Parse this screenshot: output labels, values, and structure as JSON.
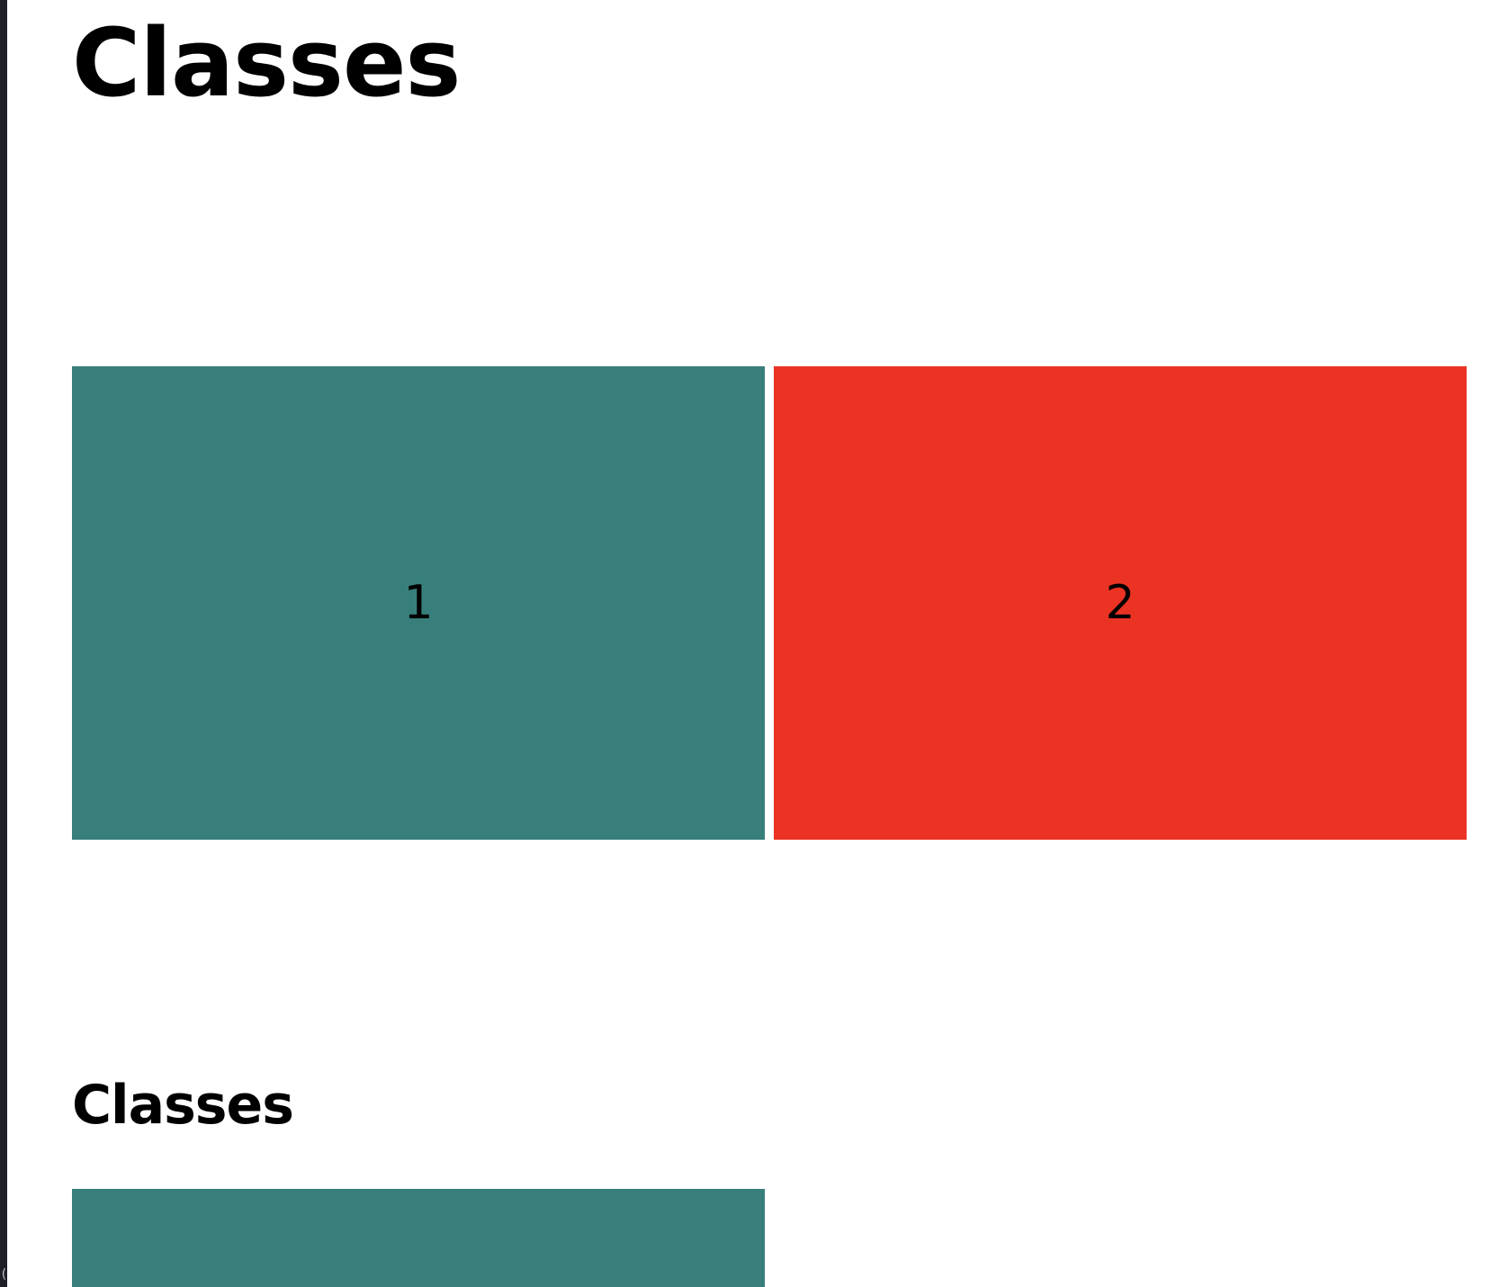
{
  "headings": {
    "first": "Classes",
    "second": "Classes"
  },
  "grid_one": {
    "items": [
      {
        "label": "1",
        "color": "#387f7c"
      },
      {
        "label": "2",
        "color": "#eb3324"
      }
    ]
  },
  "grid_two": {
    "items": [
      {
        "label": "",
        "color": "#387f7c"
      }
    ]
  },
  "left_edge": {
    "mark": "("
  }
}
